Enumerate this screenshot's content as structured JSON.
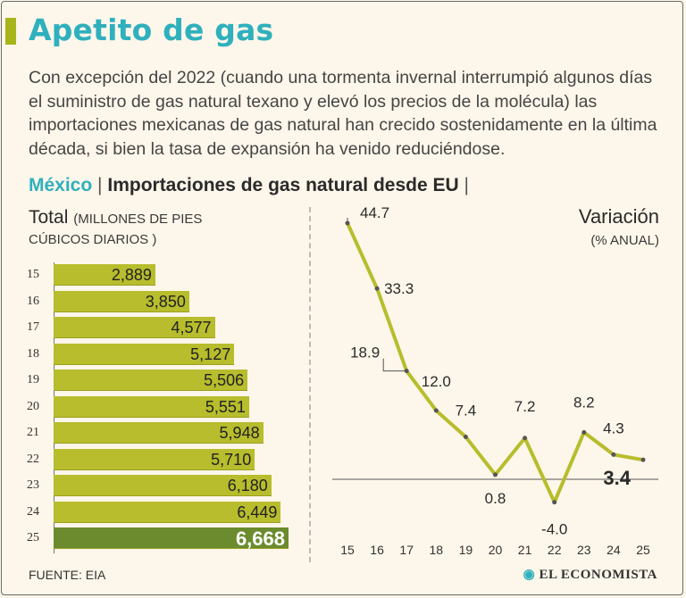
{
  "title": "Apetito de gas",
  "description": "Con excepción del 2022 (cuando una tormenta invernal interrumpió algunos días el suministro de gas natural texano y elevó los precios de la molécula) las importaciones mexicanas de gas natural han crecido sostenidamente en la última década, si bien la tasa de expansión ha venido reduciéndose.",
  "subhead": {
    "country": "México",
    "sep1": "|",
    "chart_title": "Importaciones de gas natural desde EU",
    "sep2": "|"
  },
  "left_panel": {
    "label": "Total",
    "unit_line1": "(MILLONES DE PIES",
    "unit_line2": "CÚBICOS DIARIOS )"
  },
  "right_panel": {
    "label": "Variación",
    "unit": "(% ANUAL)"
  },
  "source": "FUENTE: EIA",
  "brand": "EL ECONOMISTA",
  "colors": {
    "accent": "#2fb0bd",
    "bar": "#b7bd2c",
    "bar_highlight": "#6b8b2e",
    "line": "#b7bd2c"
  },
  "chart_data": [
    {
      "type": "bar",
      "orientation": "horizontal",
      "title": "Total",
      "categories": [
        "15",
        "16",
        "17",
        "18",
        "19",
        "20",
        "21",
        "22",
        "23",
        "24",
        "25"
      ],
      "values": [
        2889,
        3850,
        4577,
        5127,
        5506,
        5551,
        5948,
        5710,
        6180,
        6449,
        6668
      ],
      "value_labels": [
        "2,889",
        "3,850",
        "4,577",
        "5,127",
        "5,506",
        "5,551",
        "5,948",
        "5,710",
        "6,180",
        "6,449",
        "6,668"
      ],
      "highlight": "25"
    },
    {
      "type": "line",
      "title": "Variación",
      "x": [
        "15",
        "16",
        "17",
        "18",
        "19",
        "20",
        "21",
        "22",
        "23",
        "24",
        "25"
      ],
      "values": [
        44.7,
        33.3,
        18.9,
        12.0,
        7.4,
        0.8,
        7.2,
        -4.0,
        8.2,
        4.3,
        3.4
      ],
      "value_labels": [
        "44.7",
        "33.3",
        "18.9",
        "12.0",
        "7.4",
        "0.8",
        "7.2",
        "-4.0",
        "8.2",
        "4.3",
        "3.4"
      ],
      "highlight": "25",
      "ylim": [
        -5,
        46
      ],
      "zero_line": true
    }
  ]
}
